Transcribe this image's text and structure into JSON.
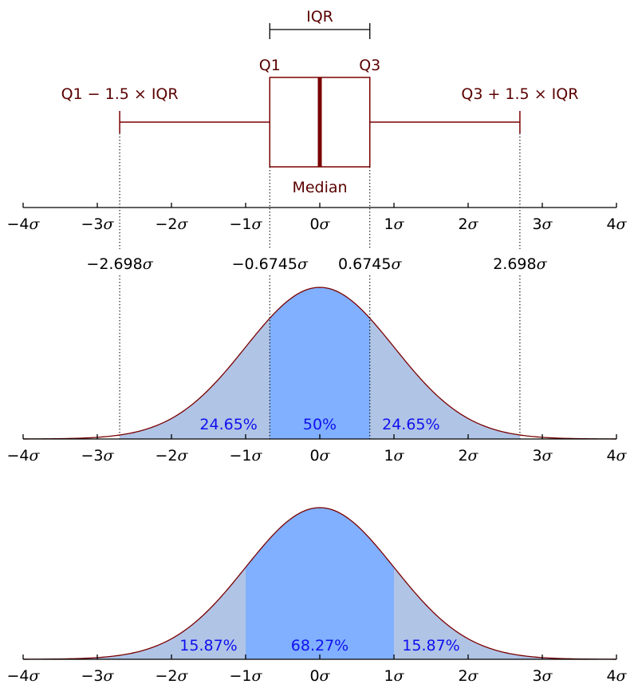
{
  "colors": {
    "curve": "#7a0000",
    "box": "#7a0000",
    "median": "#7a0000",
    "outer_fill": "#b0c4e6",
    "center_fill": "#80b0ff",
    "percent_text": "#1010ee",
    "label_text": "#5a0000"
  },
  "axis_ticks": [
    {
      "sigma": -4,
      "label": "−4"
    },
    {
      "sigma": -3,
      "label": "−3"
    },
    {
      "sigma": -2,
      "label": "−2"
    },
    {
      "sigma": -1,
      "label": "−1"
    },
    {
      "sigma": 0,
      "label": "0"
    },
    {
      "sigma": 1,
      "label": "1"
    },
    {
      "sigma": 2,
      "label": "2"
    },
    {
      "sigma": 3,
      "label": "3"
    },
    {
      "sigma": 4,
      "label": "4"
    }
  ],
  "sigma_symbol": "σ",
  "boxplot": {
    "iqr_label": "IQR",
    "q1_label": "Q1",
    "q3_label": "Q3",
    "median_label": "Median",
    "lower_whisker_label": "Q1 − 1.5 × IQR",
    "upper_whisker_label": "Q3 + 1.5 × IQR",
    "q1": -0.6745,
    "q3": 0.6745,
    "median": 0,
    "lower_whisker": -2.698,
    "upper_whisker": 2.698
  },
  "boundary_labels": [
    {
      "sigma": -2.698,
      "label": "−2.698"
    },
    {
      "sigma": -0.6745,
      "label": "−0.6745"
    },
    {
      "sigma": 0.6745,
      "label": "0.6745"
    },
    {
      "sigma": 2.698,
      "label": "2.698"
    }
  ],
  "middle_distribution": {
    "outer_range": [
      -2.698,
      2.698
    ],
    "center_range": [
      -0.6745,
      0.6745
    ],
    "percent_left": "24.65%",
    "percent_center": "50%",
    "percent_right": "24.65%"
  },
  "bottom_distribution": {
    "outer_range": [
      -4,
      4
    ],
    "center_range": [
      -1,
      1
    ],
    "percent_left": "15.87%",
    "percent_center": "68.27%",
    "percent_right": "15.87%"
  }
}
